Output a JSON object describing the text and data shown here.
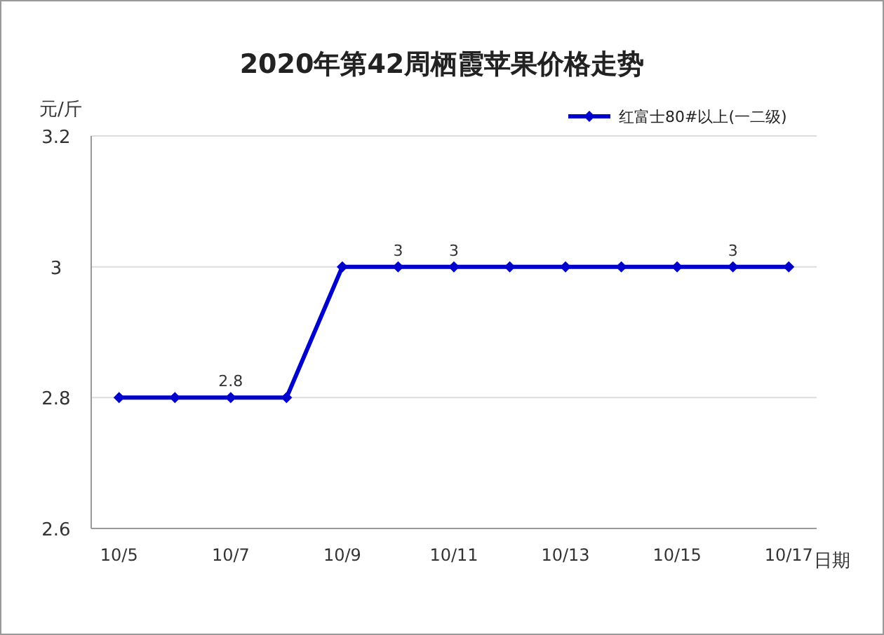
{
  "chart_data": {
    "type": "line",
    "title": "2020年第42周栖霞苹果价格走势",
    "ylabel": "元/斤",
    "xlabel": "日期",
    "categories": [
      "10/5",
      null,
      "10/7",
      null,
      "10/9",
      null,
      "10/11",
      null,
      "10/13",
      null,
      "10/15",
      null,
      "10/17"
    ],
    "series": [
      {
        "name": "红富士80#以上(一二级)",
        "color": "#0000cc",
        "values": [
          2.8,
          2.8,
          2.8,
          2.8,
          3,
          3,
          3,
          3,
          3,
          3,
          3,
          3,
          3
        ],
        "value_labels": [
          null,
          null,
          "2.8",
          null,
          null,
          "3",
          "3",
          null,
          null,
          null,
          null,
          "3",
          null
        ]
      }
    ],
    "ylim": [
      2.6,
      3.2
    ],
    "yticks": [
      2.6,
      2.8,
      3,
      3.2
    ],
    "grid": "y",
    "legend": "top right",
    "marker": "diamond",
    "line_style": "solid"
  }
}
